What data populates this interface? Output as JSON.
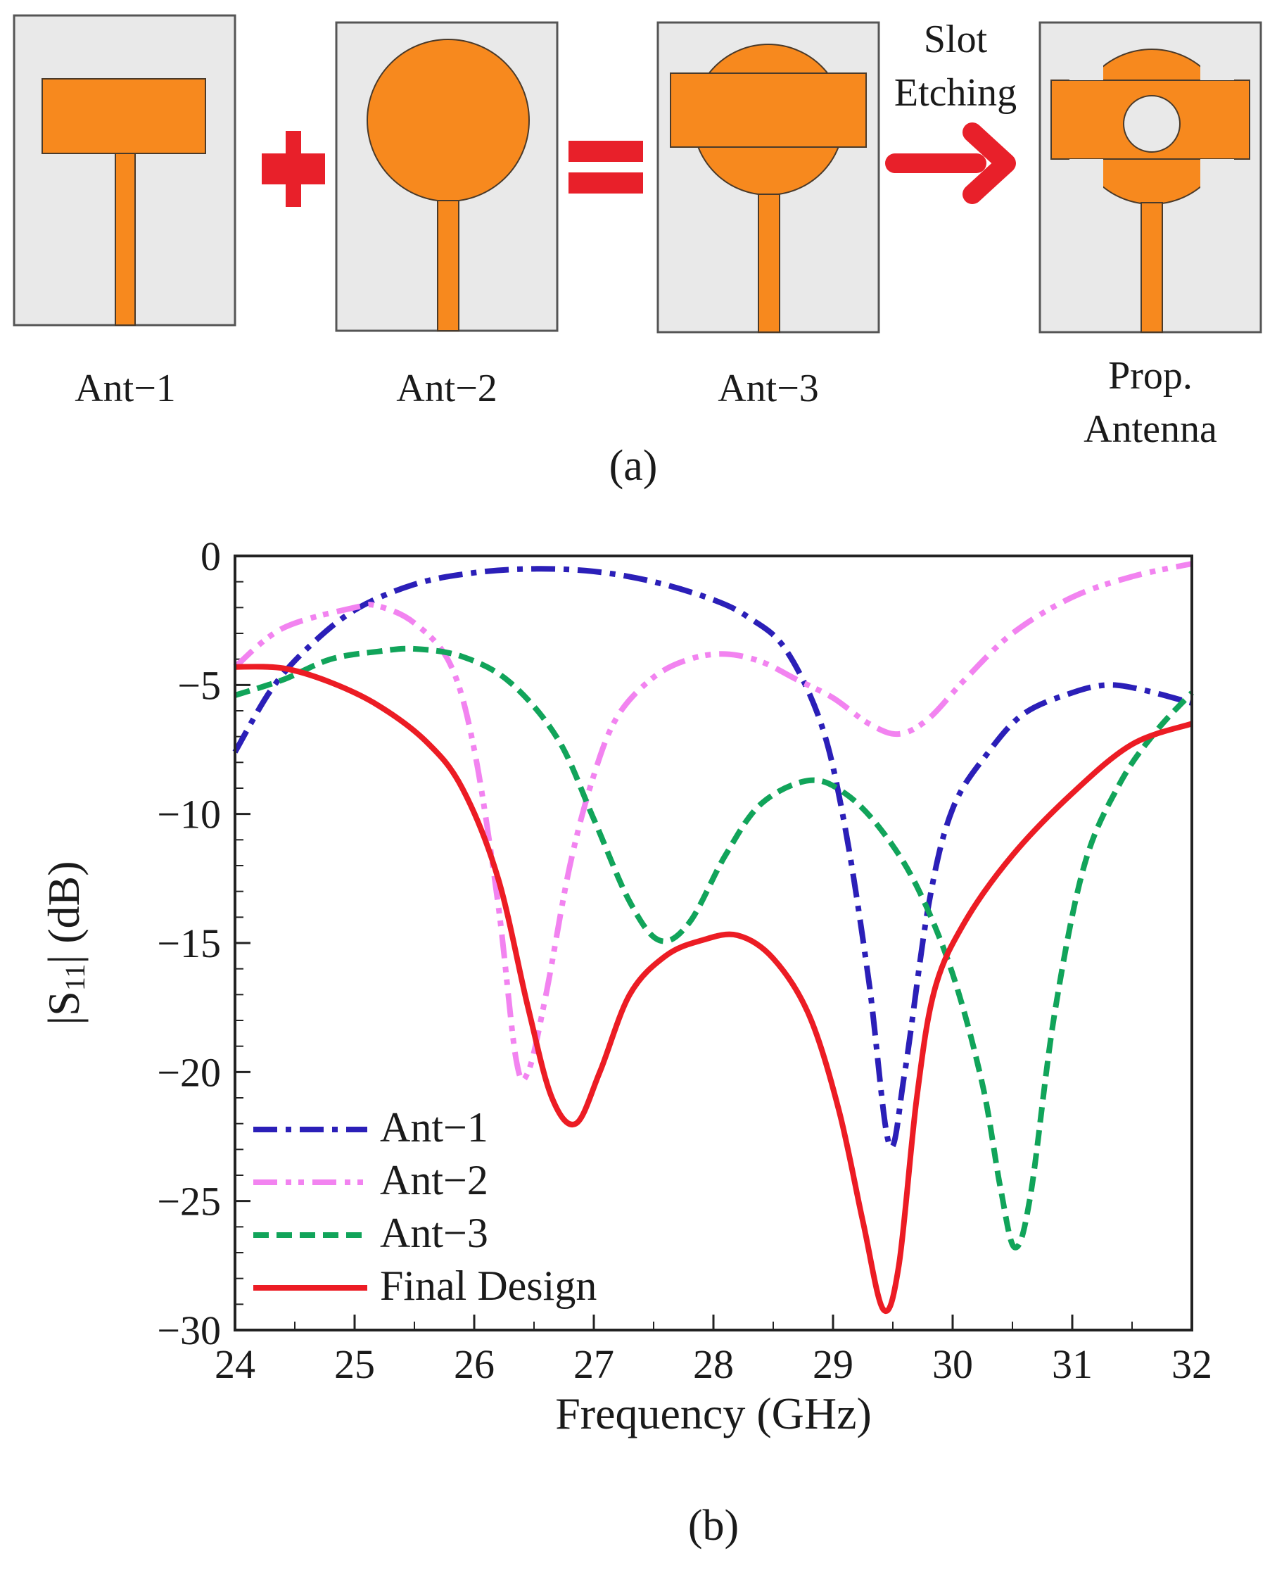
{
  "panel_a": {
    "labels": {
      "ant1": "Ant−1",
      "ant2": "Ant−2",
      "ant3": "Ant−3",
      "prop_line1": "Prop.",
      "prop_line2": "Antenna"
    },
    "arrow_text": {
      "line1": "Slot",
      "line2": "Etching"
    },
    "caption": "(a)",
    "colors": {
      "substrate": "#e9e9e9",
      "patch": "#f7891e",
      "operator": "#e8202a"
    }
  },
  "panel_b": {
    "caption": "(b)"
  },
  "chart_data": {
    "type": "line",
    "title": "",
    "xlabel": "Frequency (GHz)",
    "ylabel_main": "|S",
    "ylabel_sub": "11",
    "ylabel_tail": "| (dB)",
    "xlim": [
      24,
      32
    ],
    "ylim": [
      -30,
      0
    ],
    "xticks": [
      "24",
      "25",
      "26",
      "27",
      "28",
      "29",
      "30",
      "31",
      "32"
    ],
    "yticks": [
      {
        "value": 0,
        "label": "0"
      },
      {
        "value": -5,
        "label": "−5"
      },
      {
        "value": -10,
        "label": "−10"
      },
      {
        "value": -15,
        "label": "−15"
      },
      {
        "value": -20,
        "label": "−20"
      },
      {
        "value": -25,
        "label": "−25"
      },
      {
        "value": -30,
        "label": "−30"
      }
    ],
    "legend_position": "bottom-left",
    "series": [
      {
        "name": "Ant−1",
        "color": "#2b1fb8",
        "style": "dashdot",
        "points": [
          [
            24,
            -7.6
          ],
          [
            24.3,
            -5.2
          ],
          [
            24.6,
            -3.6
          ],
          [
            25,
            -2.1
          ],
          [
            25.5,
            -1.1
          ],
          [
            26,
            -0.65
          ],
          [
            26.5,
            -0.5
          ],
          [
            27,
            -0.6
          ],
          [
            27.5,
            -1.0
          ],
          [
            28,
            -1.7
          ],
          [
            28.3,
            -2.4
          ],
          [
            28.6,
            -3.6
          ],
          [
            28.9,
            -6.5
          ],
          [
            29.1,
            -10.5
          ],
          [
            29.3,
            -16.5
          ],
          [
            29.47,
            -22.8
          ],
          [
            29.6,
            -20
          ],
          [
            29.8,
            -13.5
          ],
          [
            30,
            -9.8
          ],
          [
            30.3,
            -7.6
          ],
          [
            30.6,
            -6.1
          ],
          [
            31,
            -5.3
          ],
          [
            31.3,
            -5.0
          ],
          [
            31.6,
            -5.2
          ],
          [
            32,
            -5.7
          ]
        ]
      },
      {
        "name": "Ant−2",
        "color": "#f283f0",
        "style": "dashdotdot",
        "points": [
          [
            24,
            -4.3
          ],
          [
            24.4,
            -2.8
          ],
          [
            25,
            -2.0
          ],
          [
            25.2,
            -1.95
          ],
          [
            25.5,
            -2.6
          ],
          [
            25.8,
            -4.2
          ],
          [
            26,
            -7.5
          ],
          [
            26.2,
            -13.5
          ],
          [
            26.35,
            -19.5
          ],
          [
            26.45,
            -20
          ],
          [
            26.6,
            -17
          ],
          [
            26.8,
            -12
          ],
          [
            27,
            -8.5
          ],
          [
            27.2,
            -6.2
          ],
          [
            27.5,
            -4.7
          ],
          [
            27.8,
            -4.0
          ],
          [
            28.1,
            -3.8
          ],
          [
            28.4,
            -4.1
          ],
          [
            28.7,
            -4.8
          ],
          [
            29,
            -5.5
          ],
          [
            29.3,
            -6.5
          ],
          [
            29.55,
            -6.9
          ],
          [
            29.8,
            -6.3
          ],
          [
            30.1,
            -4.8
          ],
          [
            30.5,
            -3.0
          ],
          [
            31,
            -1.6
          ],
          [
            31.5,
            -0.8
          ],
          [
            32,
            -0.3
          ]
        ]
      },
      {
        "name": "Ant−3",
        "color": "#11a45a",
        "style": "dashed",
        "points": [
          [
            24,
            -5.4
          ],
          [
            24.4,
            -4.8
          ],
          [
            24.8,
            -4.0
          ],
          [
            25.2,
            -3.7
          ],
          [
            25.5,
            -3.6
          ],
          [
            25.9,
            -3.9
          ],
          [
            26.3,
            -4.9
          ],
          [
            26.7,
            -7.1
          ],
          [
            27,
            -10.2
          ],
          [
            27.3,
            -13.4
          ],
          [
            27.55,
            -14.9
          ],
          [
            27.8,
            -14.2
          ],
          [
            28.1,
            -11.6
          ],
          [
            28.4,
            -9.6
          ],
          [
            28.8,
            -8.7
          ],
          [
            29.1,
            -9.2
          ],
          [
            29.4,
            -10.6
          ],
          [
            29.7,
            -12.8
          ],
          [
            30,
            -16.2
          ],
          [
            30.25,
            -20.5
          ],
          [
            30.4,
            -24.5
          ],
          [
            30.52,
            -26.8
          ],
          [
            30.65,
            -24.8
          ],
          [
            30.85,
            -17.8
          ],
          [
            31.1,
            -12
          ],
          [
            31.4,
            -8.8
          ],
          [
            31.7,
            -6.8
          ],
          [
            32,
            -5.3
          ]
        ]
      },
      {
        "name": "Final Design",
        "color": "#ec1c24",
        "style": "solid",
        "points": [
          [
            24,
            -4.3
          ],
          [
            24.4,
            -4.35
          ],
          [
            24.8,
            -4.9
          ],
          [
            25.2,
            -5.8
          ],
          [
            25.6,
            -7.2
          ],
          [
            25.9,
            -9.0
          ],
          [
            26.2,
            -12.5
          ],
          [
            26.45,
            -17.5
          ],
          [
            26.65,
            -21.0
          ],
          [
            26.85,
            -22.0
          ],
          [
            27.05,
            -20.0
          ],
          [
            27.3,
            -17.0
          ],
          [
            27.6,
            -15.5
          ],
          [
            27.9,
            -14.9
          ],
          [
            28.2,
            -14.7
          ],
          [
            28.5,
            -15.6
          ],
          [
            28.8,
            -17.8
          ],
          [
            29.05,
            -21.5
          ],
          [
            29.25,
            -25.8
          ],
          [
            29.42,
            -29.2
          ],
          [
            29.55,
            -27.5
          ],
          [
            29.7,
            -21.0
          ],
          [
            29.85,
            -16.8
          ],
          [
            30.1,
            -14.2
          ],
          [
            30.5,
            -11.6
          ],
          [
            31,
            -9.2
          ],
          [
            31.5,
            -7.3
          ],
          [
            32,
            -6.5
          ]
        ]
      }
    ]
  }
}
